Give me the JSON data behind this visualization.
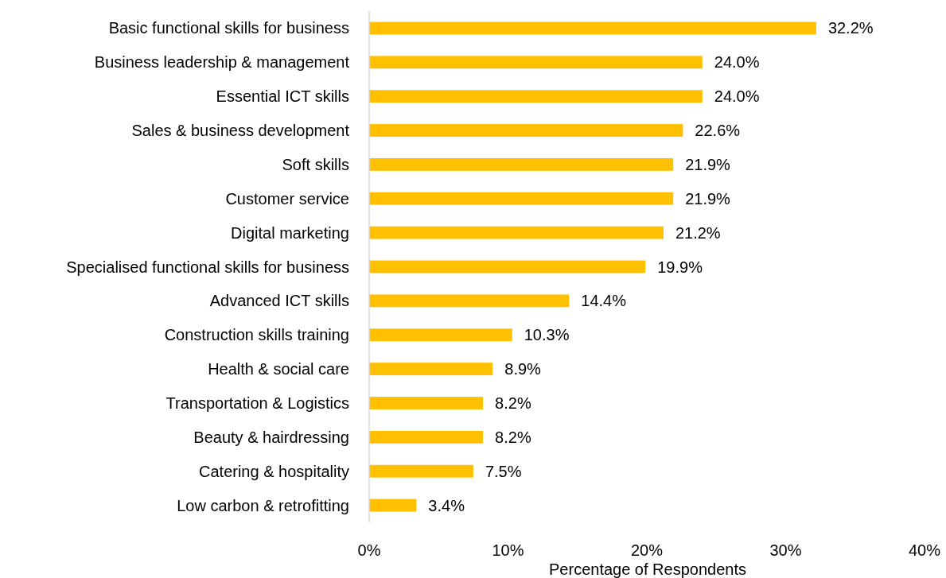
{
  "chart_data": {
    "type": "bar",
    "orientation": "horizontal",
    "xlabel": "Percentage of Respondents",
    "categories": [
      "Basic functional skills for business",
      "Business leadership & management",
      "Essential ICT skills",
      "Sales & business development",
      "Soft skills",
      "Customer service",
      "Digital marketing",
      "Specialised functional skills for business",
      "Advanced ICT skills",
      "Construction skills training",
      "Health & social care",
      "Transportation & Logistics",
      "Beauty & hairdressing",
      "Catering & hospitality",
      "Low carbon & retrofitting"
    ],
    "values": [
      32.2,
      24.0,
      24.0,
      22.6,
      21.9,
      21.9,
      21.2,
      19.9,
      14.4,
      10.3,
      8.9,
      8.2,
      8.2,
      7.5,
      3.4
    ],
    "value_labels": [
      "32.2%",
      "24.0%",
      "24.0%",
      "22.6%",
      "21.9%",
      "21.9%",
      "21.2%",
      "19.9%",
      "14.4%",
      "10.3%",
      "8.9%",
      "8.2%",
      "8.2%",
      "7.5%",
      "3.4%"
    ],
    "color": "#ffc000",
    "xlim": [
      0,
      40
    ],
    "xticks": [
      {
        "value": 0,
        "label": "0%"
      },
      {
        "value": 10,
        "label": "10%"
      },
      {
        "value": 20,
        "label": "20%"
      },
      {
        "value": 30,
        "label": "30%"
      },
      {
        "value": 40,
        "label": "40%"
      }
    ],
    "grid": false
  }
}
